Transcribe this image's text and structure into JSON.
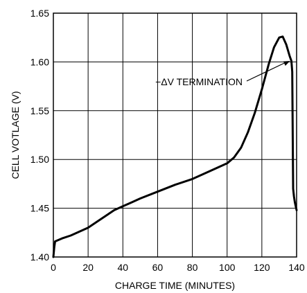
{
  "chart_data": {
    "type": "line",
    "title": "",
    "xlabel": "CHARGE TIME (MINUTES)",
    "ylabel": "CELL VOTLAGE (V)",
    "xlim": [
      0,
      140
    ],
    "ylim": [
      1.4,
      1.65
    ],
    "x_ticks": [
      0,
      20,
      40,
      60,
      80,
      100,
      120,
      140
    ],
    "y_ticks": [
      "1.40",
      "1.45",
      "1.50",
      "1.55",
      "1.60",
      "1.65"
    ],
    "grid": true,
    "annotation": {
      "text": "−ΔV TERMINATION",
      "points_to": {
        "x": 137,
        "y": 1.601
      }
    },
    "series": [
      {
        "x": [
          0,
          0.5,
          1,
          5,
          10,
          15,
          20,
          25,
          30,
          35,
          40,
          45,
          50,
          60,
          70,
          80,
          90,
          100,
          104,
          108,
          112,
          116,
          120,
          124,
          127,
          130,
          132,
          134,
          136,
          137,
          137.5,
          138,
          138.5,
          139,
          140
        ],
        "y": [
          1.4,
          1.41,
          1.416,
          1.419,
          1.422,
          1.426,
          1.43,
          1.436,
          1.442,
          1.448,
          1.452,
          1.456,
          1.46,
          1.467,
          1.474,
          1.48,
          1.488,
          1.496,
          1.502,
          1.512,
          1.528,
          1.548,
          1.572,
          1.598,
          1.615,
          1.625,
          1.626,
          1.618,
          1.606,
          1.601,
          1.59,
          1.47,
          1.462,
          1.456,
          1.448
        ]
      }
    ]
  }
}
